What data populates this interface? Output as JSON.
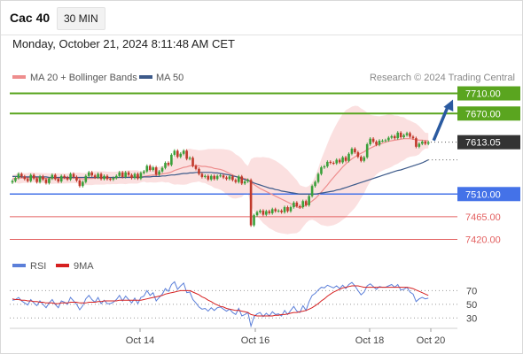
{
  "header": {
    "instrument": "Cac 40",
    "interval": "30 MIN",
    "timestamp": "Monday, October 21, 2024 8:11:48 AM CET"
  },
  "colors": {
    "resistance": "#5aa51f",
    "support": "#4472e8",
    "support_minor": "#e36060",
    "last": "#333333",
    "candle_up": "#3aa03a",
    "candle_down": "#c0392b",
    "bollinger": "#f9d6d6",
    "ma20": "#ee8d8d",
    "ma50": "#3d5a8a",
    "rsi": "#5b7fd9",
    "rsi_ma": "#d62020",
    "arrow": "#2a5aa0"
  },
  "legend": {
    "ma20_label": "MA 20 + Bollinger Bands",
    "ma50_label": "MA 50",
    "source": "Research © 2024 Trading Central"
  },
  "rsi_legend": {
    "rsi_label": "RSI",
    "ma_label": "9MA"
  },
  "chart_data": {
    "type": "candlestick",
    "ylim": [
      7405,
      7725
    ],
    "x_ticks": [
      "Oct 14",
      "Oct 16",
      "Oct 18",
      "Oct 20"
    ],
    "levels": [
      {
        "label": "7710.00",
        "value": 7710,
        "kind": "resistance"
      },
      {
        "label": "7670.00",
        "value": 7670,
        "kind": "resistance"
      },
      {
        "label": "7613.05",
        "value": 7613.05,
        "kind": "last"
      },
      {
        "label": "7510.00",
        "value": 7510,
        "kind": "support"
      },
      {
        "label": "7465.00",
        "value": 7465,
        "kind": "support_minor"
      },
      {
        "label": "7420.00",
        "value": 7420,
        "kind": "support_minor"
      }
    ],
    "closes": [
      7536,
      7542,
      7550,
      7545,
      7540,
      7536,
      7548,
      7541,
      7534,
      7545,
      7539,
      7532,
      7541,
      7548,
      7540,
      7535,
      7546,
      7543,
      7539,
      7550,
      7544,
      7537,
      7526,
      7534,
      7546,
      7553,
      7547,
      7543,
      7550,
      7540,
      7546,
      7540,
      7539,
      7542,
      7546,
      7553,
      7544,
      7553,
      7548,
      7542,
      7550,
      7541,
      7552,
      7555,
      7566,
      7558,
      7563,
      7549,
      7555,
      7562,
      7572,
      7568,
      7588,
      7596,
      7584,
      7590,
      7596,
      7580,
      7582,
      7566,
      7560,
      7550,
      7544,
      7546,
      7539,
      7546,
      7540,
      7546,
      7547,
      7543,
      7540,
      7545,
      7538,
      7534,
      7545,
      7531,
      7535,
      7538,
      7448,
      7468,
      7474,
      7477,
      7469,
      7476,
      7472,
      7480,
      7476,
      7477,
      7474,
      7484,
      7476,
      7484,
      7493,
      7486,
      7484,
      7496,
      7488,
      7506,
      7526,
      7534,
      7550,
      7563,
      7565,
      7574,
      7572,
      7571,
      7578,
      7573,
      7583,
      7576,
      7590,
      7600,
      7593,
      7584,
      7576,
      7583,
      7609,
      7620,
      7614,
      7608,
      7616,
      7616,
      7617,
      7622,
      7625,
      7621,
      7632,
      7623,
      7627,
      7631,
      7624,
      7621,
      7604,
      7610,
      7614,
      7610,
      7613
    ],
    "ma20": [
      7540,
      7541,
      7542,
      7542,
      7542,
      7542,
      7543,
      7543,
      7542,
      7542,
      7542,
      7541,
      7541,
      7541,
      7541,
      7541,
      7541,
      7541,
      7541,
      7542,
      7542,
      7542,
      7541,
      7540,
      7540,
      7541,
      7541,
      7542,
      7542,
      7542,
      7542,
      7542,
      7542,
      7542,
      7542,
      7543,
      7543,
      7543,
      7544,
      7544,
      7544,
      7544,
      7544,
      7545,
      7546,
      7547,
      7548,
      7548,
      7549,
      7550,
      7551,
      7552,
      7554,
      7557,
      7559,
      7561,
      7563,
      7564,
      7566,
      7566,
      7566,
      7566,
      7565,
      7565,
      7564,
      7563,
      7561,
      7560,
      7559,
      7557,
      7554,
      7551,
      7548,
      7545,
      7544,
      7542,
      7541,
      7539,
      7533,
      7529,
      7525,
      7521,
      7518,
      7515,
      7512,
      7509,
      7506,
      7503,
      7500,
      7497,
      7494,
      7491,
      7488,
      7485,
      7482,
      7485,
      7488,
      7492,
      7496,
      7501,
      7507,
      7514,
      7521,
      7528,
      7536,
      7543,
      7550,
      7557,
      7564,
      7570,
      7575,
      7580,
      7584,
      7588,
      7591,
      7594,
      7598,
      7601,
      7604,
      7607,
      7609,
      7611,
      7613,
      7615,
      7616,
      7617,
      7618,
      7619,
      7620,
      7620,
      7620,
      7619,
      7618,
      7617,
      7617,
      7616,
      7616
    ],
    "ma50": [
      7545,
      7545,
      7545,
      7544,
      7544,
      7544,
      7544,
      7544,
      7544,
      7544,
      7544,
      7544,
      7543,
      7543,
      7543,
      7543,
      7543,
      7543,
      7543,
      7543,
      7543,
      7543,
      7543,
      7543,
      7543,
      7543,
      7543,
      7543,
      7543,
      7543,
      7543,
      7543,
      7543,
      7543,
      7543,
      7543,
      7543,
      7543,
      7543,
      7543,
      7543,
      7543,
      7543,
      7544,
      7544,
      7544,
      7545,
      7545,
      7545,
      7546,
      7546,
      7547,
      7548,
      7548,
      7549,
      7550,
      7551,
      7551,
      7552,
      7552,
      7553,
      7553,
      7553,
      7553,
      7553,
      7553,
      7552,
      7552,
      7551,
      7550,
      7549,
      7548,
      7546,
      7545,
      7543,
      7541,
      7539,
      7537,
      7535,
      7532,
      7530,
      7528,
      7526,
      7524,
      7522,
      7521,
      7519,
      7518,
      7516,
      7515,
      7514,
      7513,
      7512,
      7511,
      7510,
      7510,
      7510,
      7510,
      7510,
      7510,
      7511,
      7512,
      7513,
      7514,
      7515,
      7516,
      7518,
      7519,
      7521,
      7523,
      7525,
      7527,
      7529,
      7531,
      7533,
      7535,
      7537,
      7539,
      7541,
      7543,
      7545,
      7547,
      7549,
      7551,
      7553,
      7555,
      7557,
      7558,
      7560,
      7562,
      7564,
      7566,
      7568,
      7570,
      7572,
      7575,
      7578
    ],
    "rsi": [
      56,
      57,
      60,
      55,
      52,
      49,
      57,
      52,
      48,
      55,
      50,
      45,
      52,
      57,
      50,
      45,
      55,
      53,
      50,
      60,
      55,
      50,
      42,
      48,
      58,
      63,
      57,
      53,
      60,
      51,
      56,
      51,
      51,
      53,
      57,
      63,
      55,
      62,
      57,
      52,
      59,
      51,
      60,
      62,
      70,
      63,
      67,
      55,
      60,
      65,
      73,
      69,
      79,
      83,
      72,
      77,
      81,
      67,
      68,
      57,
      52,
      46,
      43,
      44,
      40,
      45,
      41,
      45,
      46,
      43,
      40,
      43,
      38,
      35,
      44,
      33,
      35,
      38,
      18,
      32,
      36,
      38,
      32,
      37,
      33,
      39,
      35,
      36,
      33,
      41,
      35,
      41,
      47,
      40,
      38,
      48,
      41,
      54,
      63,
      66,
      71,
      75,
      74,
      78,
      76,
      74,
      77,
      73,
      78,
      73,
      79,
      82,
      77,
      70,
      64,
      68,
      77,
      80,
      76,
      72,
      76,
      75,
      75,
      77,
      79,
      75,
      79,
      71,
      72,
      75,
      68,
      65,
      54,
      58,
      60,
      58,
      59
    ],
    "rsi_ma": [
      58,
      57,
      57,
      56,
      56,
      55,
      55,
      54,
      54,
      53,
      53,
      52,
      52,
      52,
      51,
      51,
      52,
      52,
      52,
      53,
      53,
      53,
      52,
      52,
      52,
      53,
      53,
      53,
      54,
      54,
      55,
      55,
      55,
      55,
      55,
      56,
      56,
      56,
      56,
      56,
      56,
      56,
      56,
      57,
      58,
      59,
      60,
      61,
      62,
      63,
      65,
      66,
      67,
      68,
      69,
      70,
      70,
      70,
      70,
      68,
      66,
      64,
      61,
      59,
      56,
      54,
      51,
      49,
      47,
      46,
      44,
      43,
      42,
      41,
      41,
      40,
      39,
      38,
      35,
      34,
      33,
      33,
      33,
      33,
      33,
      33,
      34,
      34,
      35,
      35,
      36,
      37,
      38,
      38,
      39,
      40,
      41,
      43,
      45,
      48,
      51,
      55,
      58,
      62,
      65,
      68,
      70,
      72,
      74,
      75,
      76,
      77,
      77,
      77,
      76,
      75,
      75,
      75,
      75,
      75,
      75,
      75,
      75,
      75,
      75,
      75,
      75,
      75,
      75,
      75,
      74,
      73,
      71,
      69,
      67,
      65,
      63
    ],
    "rsi_ticks": [
      70,
      50,
      30
    ]
  }
}
